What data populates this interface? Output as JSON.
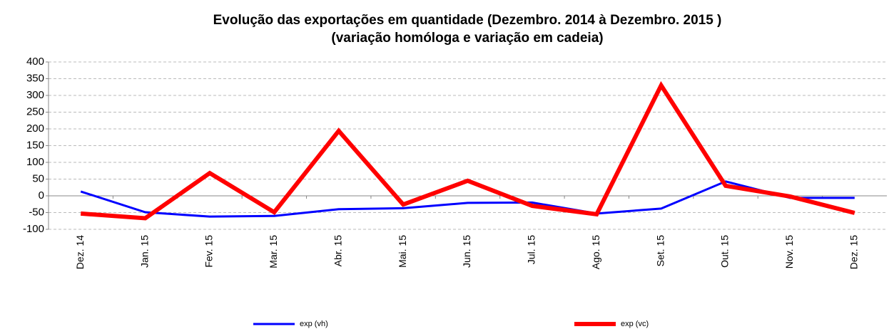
{
  "chart_data": {
    "type": "line",
    "title": "Evolução das exportações em quantidade (Dezembro. 2014 à Dezembro. 2015 )",
    "subtitle": "(variação homóloga e variação em cadeia)",
    "categories": [
      "Dez. 14",
      "Jan. 15",
      "Fev. 15",
      "Mar. 15",
      "Abr. 15",
      "Mai. 15",
      "Jun. 15",
      "Jul. 15",
      "Ago. 15",
      "Set. 15",
      "Out. 15",
      "Nov. 15",
      "Dez. 15"
    ],
    "series": [
      {
        "name": "exp (vh)",
        "color": "#0000ff",
        "width": 3,
        "values": [
          13,
          -49,
          -62,
          -60,
          -40,
          -37,
          -21,
          -20,
          -53,
          -38,
          43,
          -6,
          -6
        ]
      },
      {
        "name": "exp (vc)",
        "color": "#ff0000",
        "width": 6,
        "values": [
          -53,
          -67,
          68,
          -49,
          194,
          -26,
          45,
          -30,
          -55,
          330,
          30,
          -2,
          -51
        ]
      }
    ],
    "ylim": [
      -100,
      400
    ],
    "yticks": [
      -100,
      -50,
      0,
      50,
      100,
      150,
      200,
      250,
      300,
      350,
      400
    ],
    "grid": true,
    "legend": "bottom"
  }
}
